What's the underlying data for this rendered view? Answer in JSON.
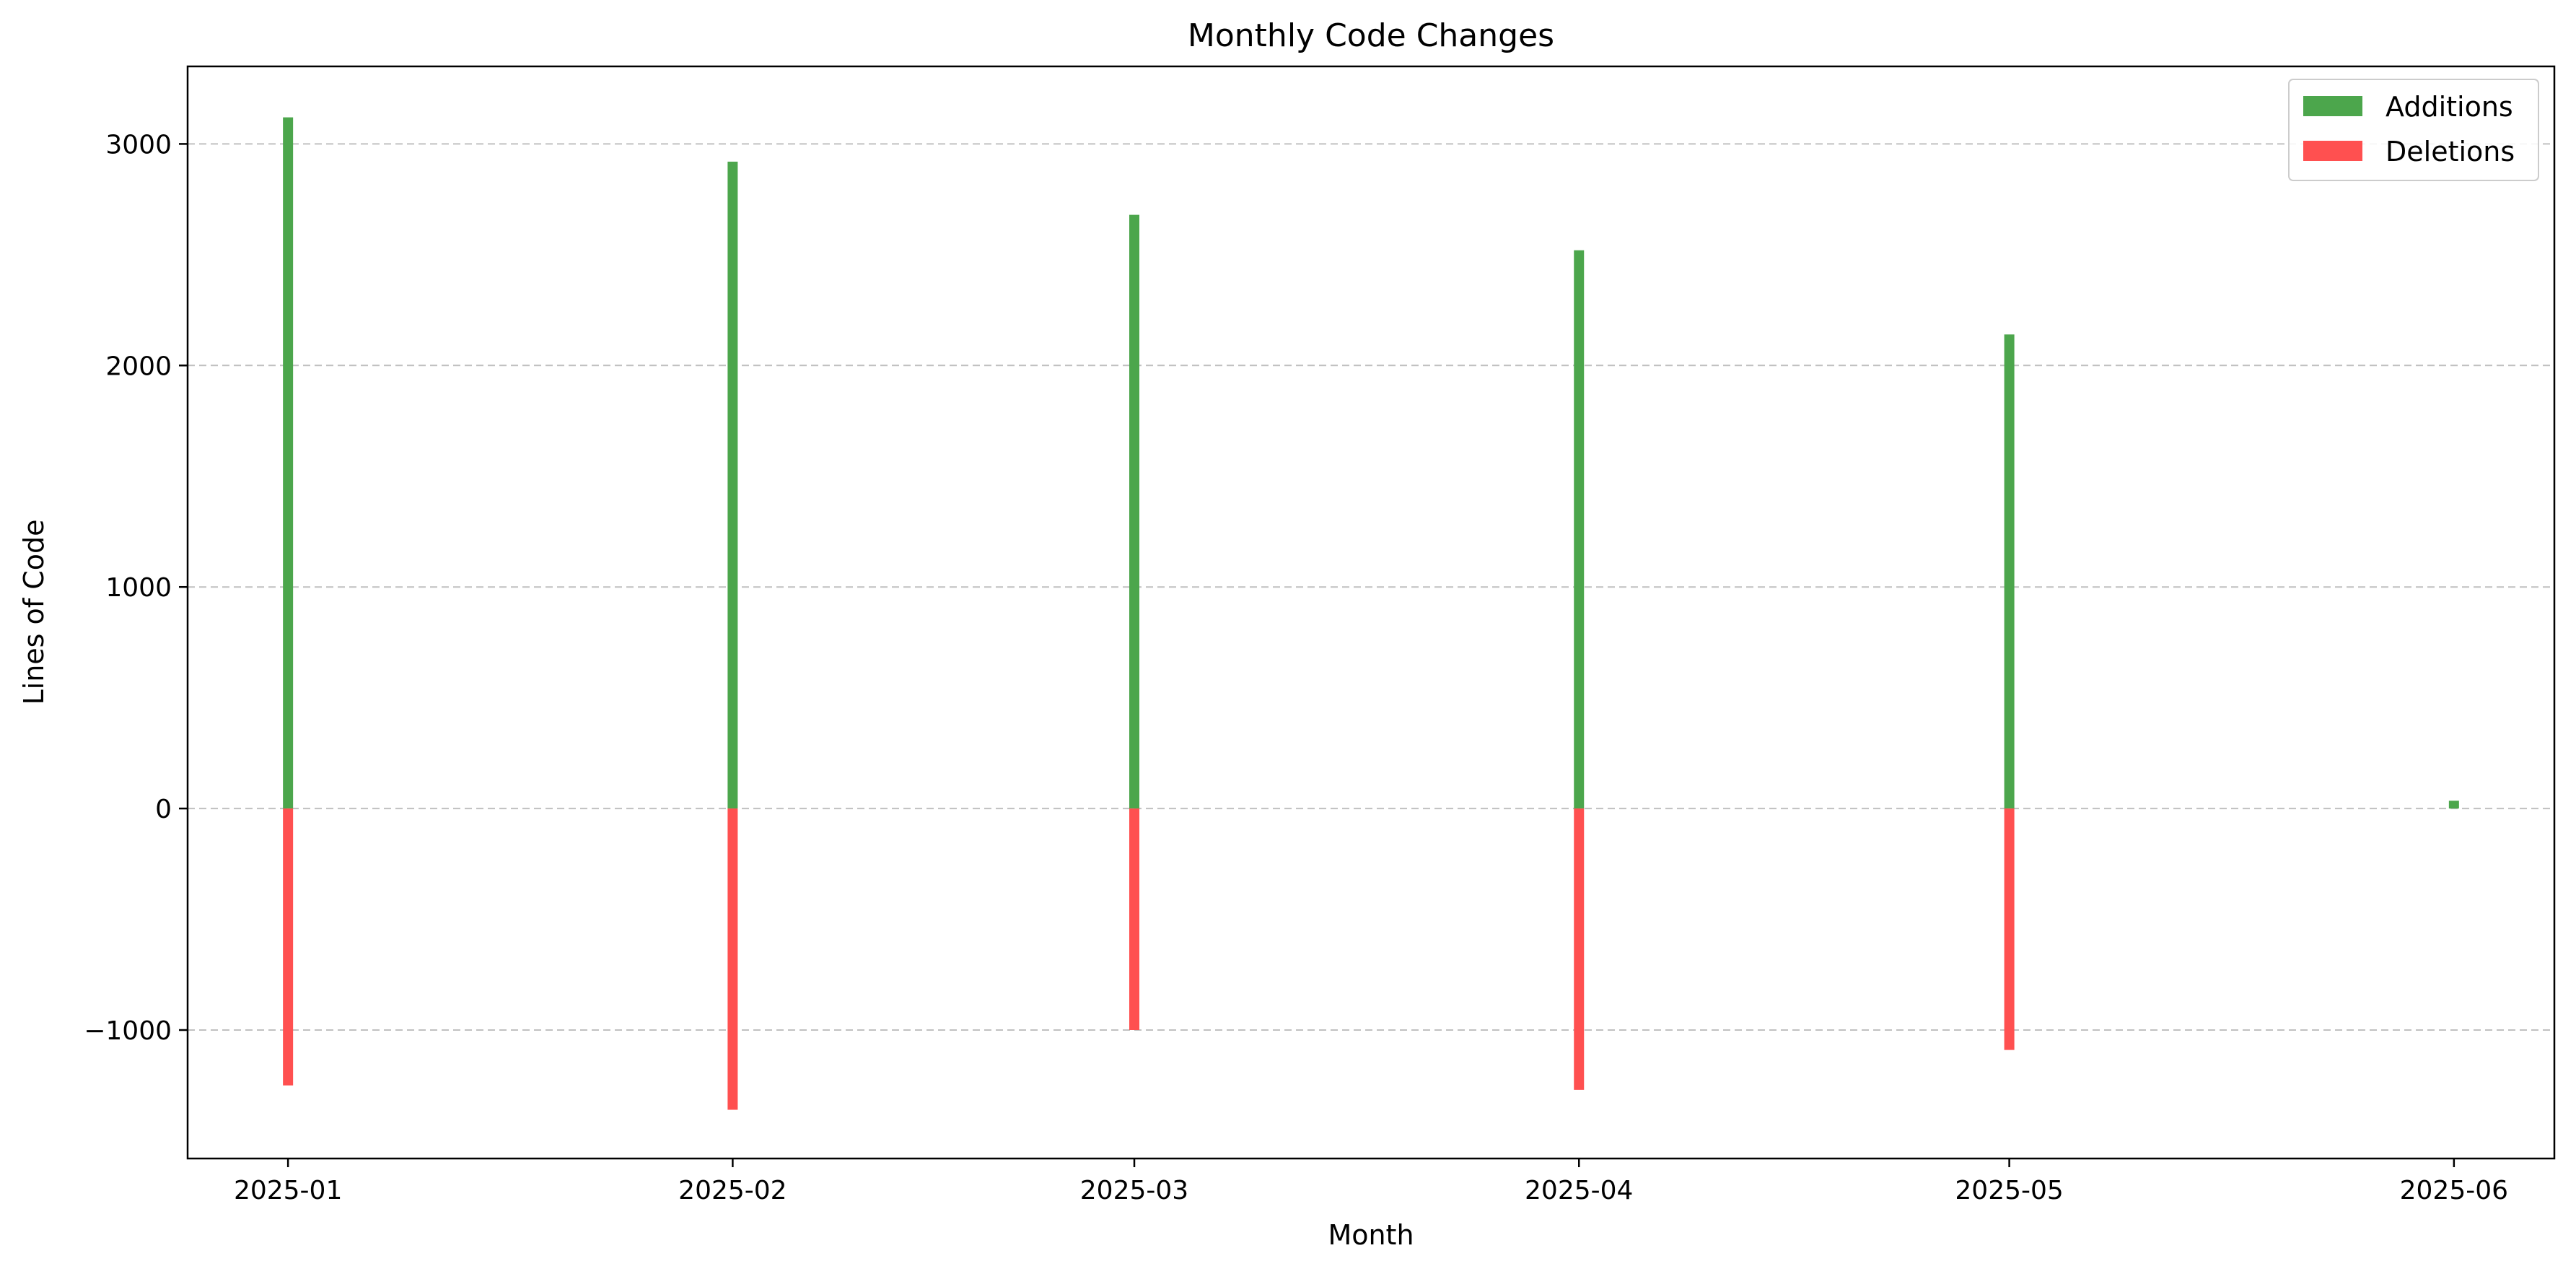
{
  "chart_data": {
    "type": "bar",
    "title": "Monthly Code Changes",
    "xlabel": "Month",
    "ylabel": "Lines of Code",
    "x": [
      "2025-01-01",
      "2025-02-01",
      "2025-03-01",
      "2025-04-01",
      "2025-05-01",
      "2025-06-01"
    ],
    "x_tick_labels": [
      "2025-01",
      "2025-02",
      "2025-03",
      "2025-04",
      "2025-05",
      "2025-06"
    ],
    "x_range": [
      "2024-12-25",
      "2025-06-08"
    ],
    "ylim": [
      -1580,
      3350
    ],
    "y_ticks": [
      -1000,
      0,
      1000,
      2000,
      3000
    ],
    "y_tick_labels": [
      "−1000",
      "0",
      "1000",
      "2000",
      "3000"
    ],
    "grid": "y-dashed",
    "legend_position": "top-right",
    "series": [
      {
        "name": "Additions",
        "color": "#4ca64c",
        "values": [
          3120,
          2920,
          2680,
          2520,
          2140,
          35
        ]
      },
      {
        "name": "Deletions",
        "color": "#ff5050",
        "values": [
          -1250,
          -1360,
          -1000,
          -1270,
          -1090,
          0
        ]
      }
    ]
  }
}
